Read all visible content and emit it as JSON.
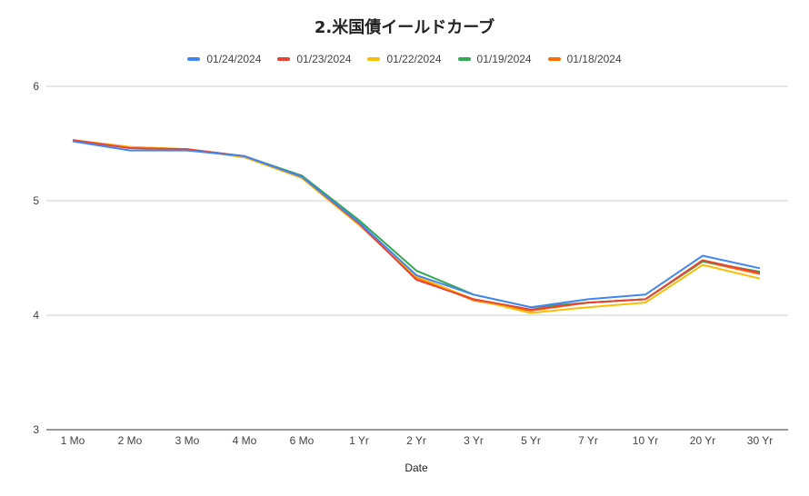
{
  "chart_data": {
    "type": "line",
    "title": "2.米国債イールドカーブ",
    "xlabel": "Date",
    "ylabel": "",
    "ylim": [
      3,
      6
    ],
    "yticks": [
      "3",
      "4",
      "5",
      "6"
    ],
    "grid": true,
    "legend_position": "top",
    "categories": [
      "1 Mo",
      "2 Mo",
      "3 Mo",
      "4 Mo",
      "6 Mo",
      "1 Yr",
      "2 Yr",
      "3 Yr",
      "5 Yr",
      "7 Yr",
      "10 Yr",
      "20 Yr",
      "30 Yr"
    ],
    "series": [
      {
        "name": "01/24/2024",
        "color": "#4285f4",
        "values": [
          5.52,
          5.44,
          5.44,
          5.39,
          5.21,
          4.81,
          4.35,
          4.18,
          4.07,
          4.14,
          4.18,
          4.52,
          4.41
        ]
      },
      {
        "name": "01/23/2024",
        "color": "#ea4335",
        "values": [
          5.53,
          5.46,
          5.45,
          5.39,
          5.21,
          4.8,
          4.31,
          4.14,
          4.05,
          4.11,
          4.14,
          4.48,
          4.37
        ]
      },
      {
        "name": "01/22/2024",
        "color": "#fbbc04",
        "values": [
          5.53,
          5.47,
          5.45,
          5.38,
          5.2,
          4.79,
          4.34,
          4.14,
          4.02,
          4.07,
          4.11,
          4.44,
          4.32
        ]
      },
      {
        "name": "01/19/2024",
        "color": "#34a853",
        "values": [
          5.53,
          5.46,
          5.45,
          5.39,
          5.22,
          4.83,
          4.39,
          4.18,
          4.07,
          4.11,
          4.14,
          4.47,
          4.38
        ]
      },
      {
        "name": "01/18/2024",
        "color": "#ff6d01",
        "values": [
          5.53,
          5.47,
          5.45,
          5.38,
          5.2,
          4.79,
          4.33,
          4.13,
          4.04,
          4.11,
          4.14,
          4.47,
          4.36
        ]
      }
    ]
  }
}
